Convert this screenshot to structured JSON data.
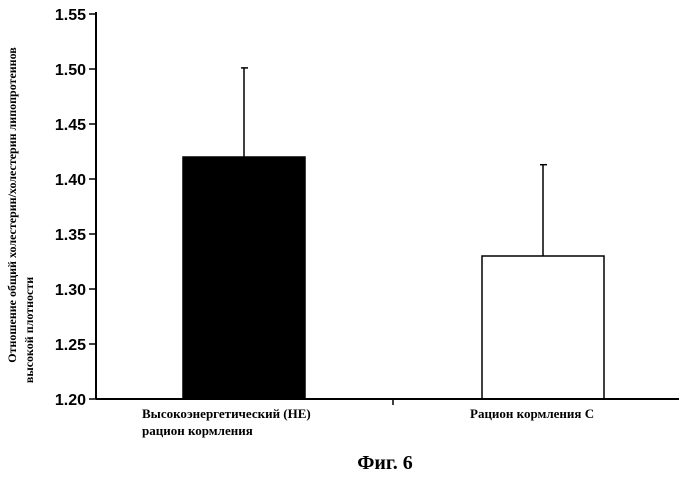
{
  "chart_data": {
    "type": "bar",
    "categories": [
      [
        "Высокоэнергетический (НЕ)",
        "рацион кормления"
      ],
      [
        "Рацион кормления С"
      ]
    ],
    "values": [
      1.42,
      1.33
    ],
    "errors": [
      0.081,
      0.083
    ],
    "bar_colors": [
      "#000000",
      "#ffffff"
    ],
    "ylabel": [
      "Отношение общий холестерин/холестерин липопротеинов",
      "высокой плотности"
    ],
    "ylim": [
      1.2,
      1.55
    ],
    "yticks": [
      1.2,
      1.25,
      1.3,
      1.35,
      1.4,
      1.45,
      1.5,
      1.55
    ],
    "ytick_labels": [
      "1.20",
      "1.25",
      "1.30",
      "1.35",
      "1.40",
      "1.45",
      "1.50",
      "1.55"
    ],
    "grid": false,
    "caption": "Фиг. 6"
  }
}
